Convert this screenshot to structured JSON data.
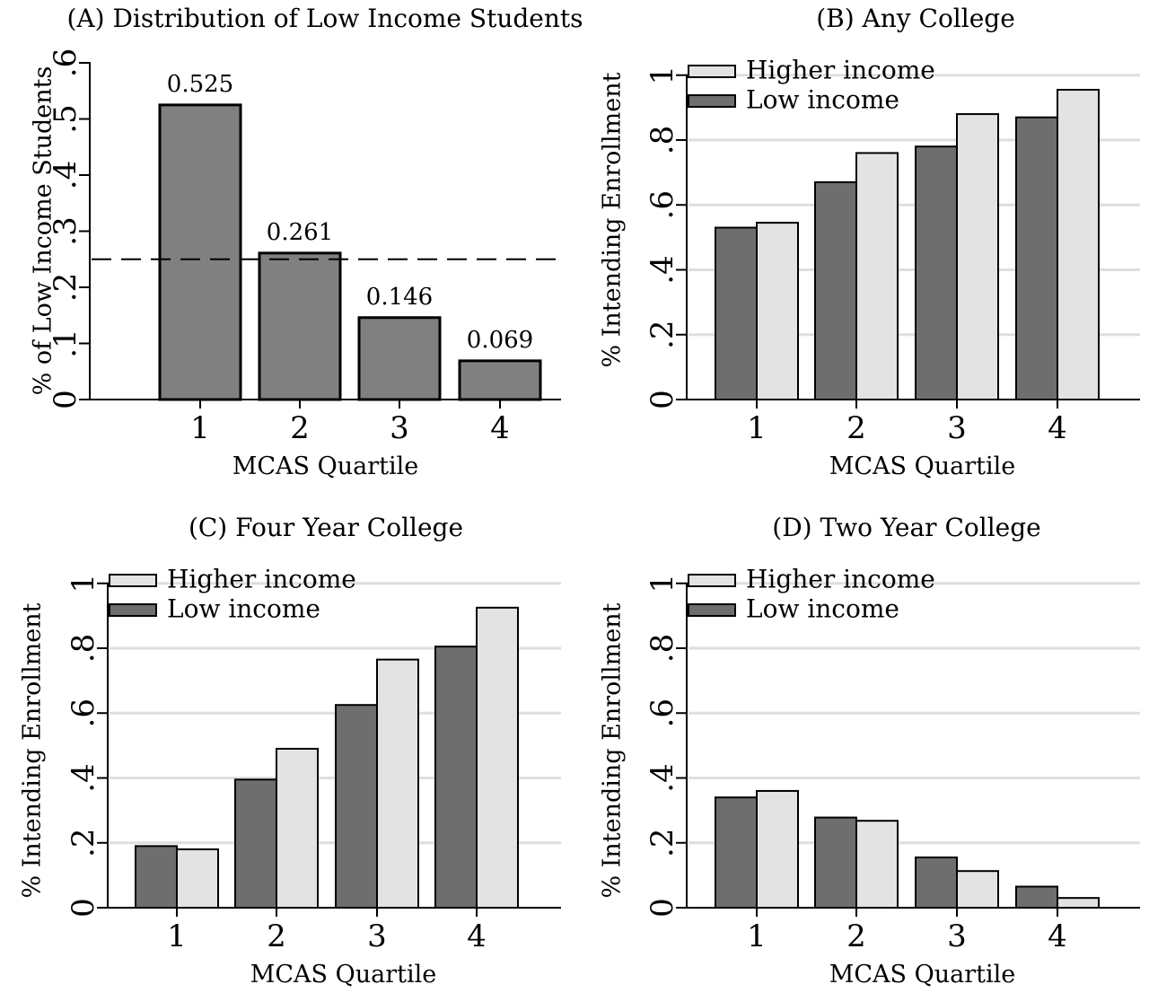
{
  "colors": {
    "low_income": "#6e6e6e",
    "higher_income": "#e3e3e3",
    "distribution_bar": "#808080",
    "gridline": "#dedede",
    "reference_line": "#000000"
  },
  "chart_data": [
    {
      "id": "A",
      "type": "bar",
      "title": "(A) Distribution of Low Income Students",
      "xlabel": "MCAS Quartile",
      "ylabel": "% of Low Income Students",
      "categories": [
        "1",
        "2",
        "3",
        "4"
      ],
      "yticks": [
        0,
        0.1,
        0.2,
        0.3,
        0.4,
        0.5,
        0.6
      ],
      "ytick_labels": [
        "0",
        ".1",
        ".2",
        ".3",
        ".4",
        ".5",
        ".6"
      ],
      "ylim": [
        0,
        0.6
      ],
      "grid": false,
      "reference_line": 0.25,
      "series": [
        {
          "values": [
            0.525,
            0.261,
            0.146,
            0.069
          ],
          "data_labels": [
            "0.525",
            "0.261",
            "0.146",
            "0.069"
          ]
        }
      ]
    },
    {
      "id": "B",
      "type": "bar",
      "title": "(B) Any College",
      "xlabel": "MCAS Quartile",
      "ylabel": "% Intending Enrollment",
      "categories": [
        "1",
        "2",
        "3",
        "4"
      ],
      "yticks": [
        0,
        0.2,
        0.4,
        0.6,
        0.8,
        1
      ],
      "ytick_labels": [
        "0",
        ".2",
        ".4",
        ".6",
        ".8",
        "1"
      ],
      "ylim": [
        0,
        1.1
      ],
      "grid": true,
      "legend": "top-left",
      "series": [
        {
          "name": "Low income",
          "values": [
            0.53,
            0.67,
            0.78,
            0.87
          ]
        },
        {
          "name": "Higher income",
          "values": [
            0.545,
            0.76,
            0.88,
            0.955
          ]
        }
      ]
    },
    {
      "id": "C",
      "type": "bar",
      "title": "(C) Four Year College",
      "xlabel": "MCAS Quartile",
      "ylabel": "% Intending Enrollment",
      "categories": [
        "1",
        "2",
        "3",
        "4"
      ],
      "yticks": [
        0,
        0.2,
        0.4,
        0.6,
        0.8,
        1
      ],
      "ytick_labels": [
        "0",
        ".2",
        ".4",
        ".6",
        ".8",
        "1"
      ],
      "ylim": [
        0,
        1.1
      ],
      "grid": true,
      "legend": "top-left",
      "series": [
        {
          "name": "Low income",
          "values": [
            0.19,
            0.395,
            0.625,
            0.805
          ]
        },
        {
          "name": "Higher income",
          "values": [
            0.18,
            0.49,
            0.765,
            0.925
          ]
        }
      ]
    },
    {
      "id": "D",
      "type": "bar",
      "title": "(D) Two Year College",
      "xlabel": "MCAS Quartile",
      "ylabel": "% Intending Enrollment",
      "categories": [
        "1",
        "2",
        "3",
        "4"
      ],
      "yticks": [
        0,
        0.2,
        0.4,
        0.6,
        0.8,
        1
      ],
      "ytick_labels": [
        "0",
        ".2",
        ".4",
        ".6",
        ".8",
        "1"
      ],
      "ylim": [
        0,
        1.1
      ],
      "grid": true,
      "legend": "top-left",
      "series": [
        {
          "name": "Low income",
          "values": [
            0.34,
            0.278,
            0.155,
            0.065
          ]
        },
        {
          "name": "Higher income",
          "values": [
            0.36,
            0.268,
            0.113,
            0.03
          ]
        }
      ]
    }
  ]
}
